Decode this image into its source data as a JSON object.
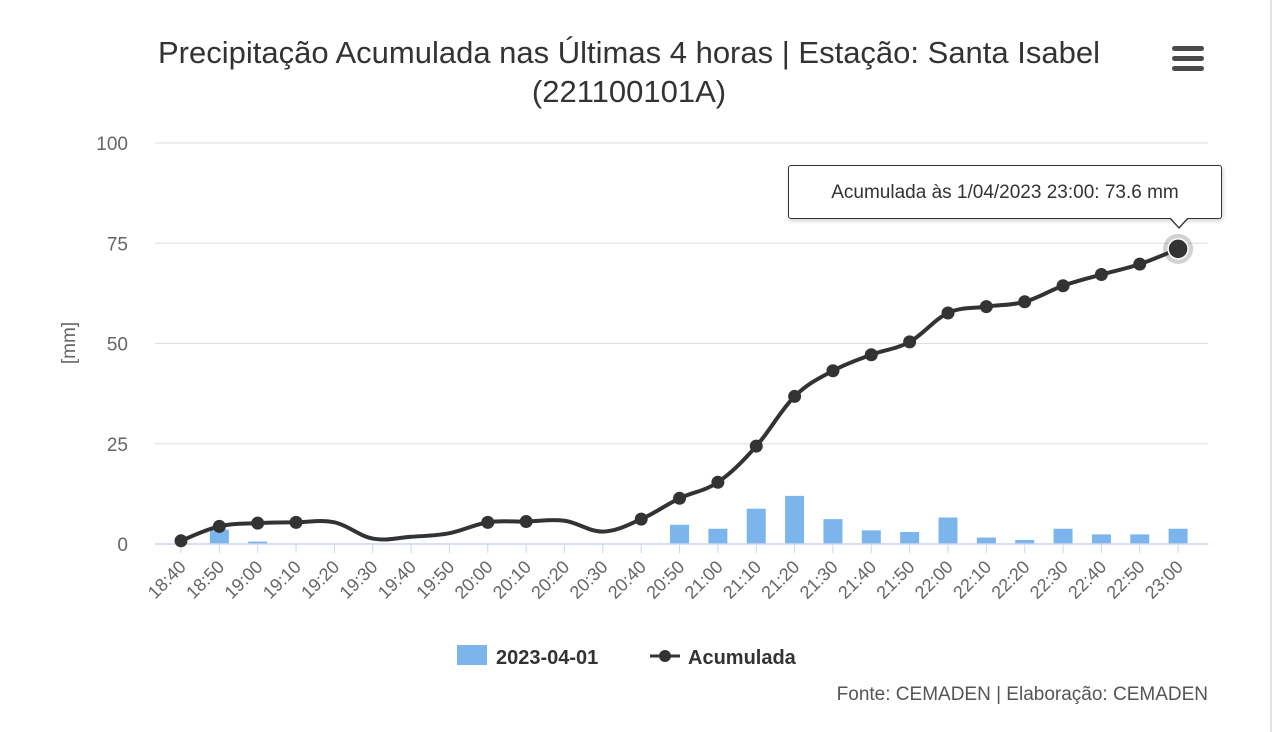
{
  "chart_data": {
    "type": "bar+line",
    "title": "Precipitação Acumulada nas Últimas 4 horas | Estação: Santa Isabel",
    "title_line2": "(221100101A)",
    "ylabel": "[mm]",
    "ylim": [
      0,
      100
    ],
    "yticks": [
      "0",
      "25",
      "50",
      "75",
      "100"
    ],
    "ytick_values": [
      0,
      25,
      50,
      75,
      100
    ],
    "grid": true,
    "categories": [
      "18:40",
      "18:50",
      "19:00",
      "19:10",
      "19:20",
      "19:30",
      "19:40",
      "19:50",
      "20:00",
      "20:10",
      "20:20",
      "20:30",
      "20:40",
      "20:50",
      "21:00",
      "21:10",
      "21:20",
      "21:30",
      "21:40",
      "21:50",
      "22:00",
      "22:10",
      "22:20",
      "22:30",
      "22:40",
      "22:50",
      "23:00"
    ],
    "series": [
      {
        "name": "2023-04-01",
        "type": "bar",
        "color": "#7cb5ec",
        "values": [
          0,
          3.6,
          0.6,
          0,
          0,
          0,
          0,
          0,
          0,
          0,
          0,
          0,
          0,
          4.8,
          3.8,
          8.8,
          12.0,
          6.2,
          3.4,
          3.0,
          6.6,
          1.6,
          1.0,
          3.8,
          2.4,
          2.4,
          3.8
        ]
      },
      {
        "name": "Acumulada",
        "type": "line",
        "color": "#333333",
        "values": [
          0.8,
          4.4,
          5.2,
          5.4,
          null,
          null,
          null,
          null,
          5.4,
          5.6,
          null,
          null,
          6.2,
          11.4,
          15.4,
          24.4,
          36.8,
          43.2,
          47.2,
          50.4,
          57.6,
          59.2,
          60.4,
          64.4,
          67.2,
          69.8,
          73.6
        ]
      }
    ],
    "legend": {
      "placement": "bottom-center",
      "items": [
        "2023-04-01",
        "Acumulada"
      ]
    },
    "tooltip": "Acumulada às 1/04/2023 23:00: 73.6 mm",
    "credits": "Fonte: CEMADEN | Elaboração: CEMADEN"
  },
  "colors": {
    "bar": "#7cb5ec",
    "line": "#333333",
    "grid": "#dddddd",
    "text": "#333333"
  },
  "icons": {
    "menu": "hamburger-menu-icon"
  }
}
